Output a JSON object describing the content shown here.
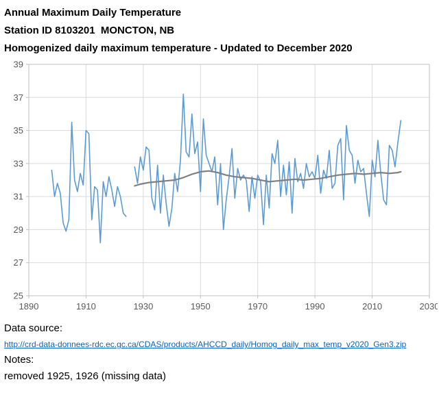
{
  "header": {
    "line1": "Annual Maximum Daily Temperature",
    "line2": "Station ID 8103201  MONCTON, NB",
    "line3": "Homogenized daily maximum temperature - Updated to December 2020"
  },
  "chart_data": {
    "type": "line",
    "title": "Annual Maximum Daily Temperature",
    "xlabel": "",
    "ylabel": "",
    "xlim": [
      1890,
      2030
    ],
    "ylim": [
      25,
      39
    ],
    "x_ticks": [
      1890,
      1910,
      1930,
      1950,
      1970,
      1990,
      2010,
      2030
    ],
    "y_ticks": [
      25,
      27,
      29,
      31,
      33,
      35,
      37,
      39
    ],
    "grid": true,
    "legend": "none",
    "colors": {
      "grid": "#D9D9D9",
      "plot_border": "#BFBFBF",
      "axis_text": "#595959"
    },
    "missing_years": [
      1925,
      1926
    ],
    "series": [
      {
        "id": "annual-max-temperature",
        "name": "Annual maximum daily temperature (°C)",
        "color": "#5B9BD5",
        "width": 1.6,
        "segments": [
          {
            "start_year": 1898,
            "values": [
              32.6,
              31.0,
              31.8,
              31.2,
              29.4,
              28.9,
              29.6,
              35.5,
              32.0,
              31.3,
              32.4,
              31.7,
              35.0,
              34.8,
              29.6,
              31.6,
              31.4,
              28.2,
              31.9,
              31.0,
              32.2,
              31.4,
              30.4,
              31.6,
              31.0,
              30.0,
              29.8
            ]
          },
          {
            "start_year": 1927,
            "values": [
              32.8,
              31.8,
              33.4,
              32.6,
              34.0,
              33.8,
              30.9,
              30.2,
              32.9,
              30.0,
              32.3,
              30.6,
              29.2,
              30.3,
              32.4,
              31.3,
              33.2,
              37.2,
              33.7,
              33.4,
              36.0,
              33.6,
              34.3,
              31.3,
              35.7,
              33.5,
              33.0,
              32.5,
              33.4,
              30.5,
              33.0,
              29.0,
              30.8,
              32.2,
              33.9,
              30.9,
              32.7,
              32.0,
              32.3,
              32.0,
              30.1,
              32.2,
              30.9,
              32.3,
              31.9,
              29.3,
              32.3,
              30.3,
              33.6,
              33.0,
              34.4,
              31.0,
              32.9,
              31.1,
              33.1,
              30.0,
              33.3,
              31.9,
              32.4,
              31.5,
              33.0,
              32.2,
              32.5,
              32.1,
              33.5,
              31.2,
              32.6,
              32.1,
              33.8,
              31.5,
              31.8,
              34.1,
              34.5,
              30.8,
              35.3,
              33.8,
              33.5,
              31.8,
              33.2,
              32.5,
              32.7,
              31.2,
              29.8,
              33.2,
              32.2,
              34.4,
              32.4,
              30.8,
              30.5,
              34.1,
              33.8,
              32.8,
              34.3,
              35.6
            ]
          }
        ]
      },
      {
        "id": "smoothed-trend",
        "name": "Smoothed trend",
        "color": "#7F7F7F",
        "width": 2.2,
        "x": [
          1927,
          1929,
          1932,
          1935,
          1938,
          1941,
          1944,
          1947,
          1950,
          1953,
          1956,
          1959,
          1962,
          1965,
          1968,
          1971,
          1974,
          1977,
          1980,
          1983,
          1986,
          1989,
          1992,
          1995,
          1998,
          2001,
          2004,
          2007,
          2010,
          2013,
          2016,
          2019,
          2020
        ],
        "y": [
          31.65,
          31.75,
          31.85,
          31.9,
          31.95,
          32.0,
          32.15,
          32.35,
          32.5,
          32.55,
          32.45,
          32.3,
          32.2,
          32.15,
          32.1,
          32.0,
          31.9,
          31.95,
          32.0,
          32.05,
          32.0,
          32.05,
          32.1,
          32.2,
          32.3,
          32.35,
          32.4,
          32.35,
          32.4,
          32.45,
          32.4,
          32.45,
          32.5
        ]
      }
    ]
  },
  "footer": {
    "data_source_label": "Data source:",
    "link_text": "http://crd-data-donnees-rdc.ec.gc.ca/CDAS/products/AHCCD_daily/Homog_daily_max_temp_v2020_Gen3.zip",
    "notes_label": "Notes:",
    "notes_text": "removed 1925, 1926 (missing data)"
  }
}
